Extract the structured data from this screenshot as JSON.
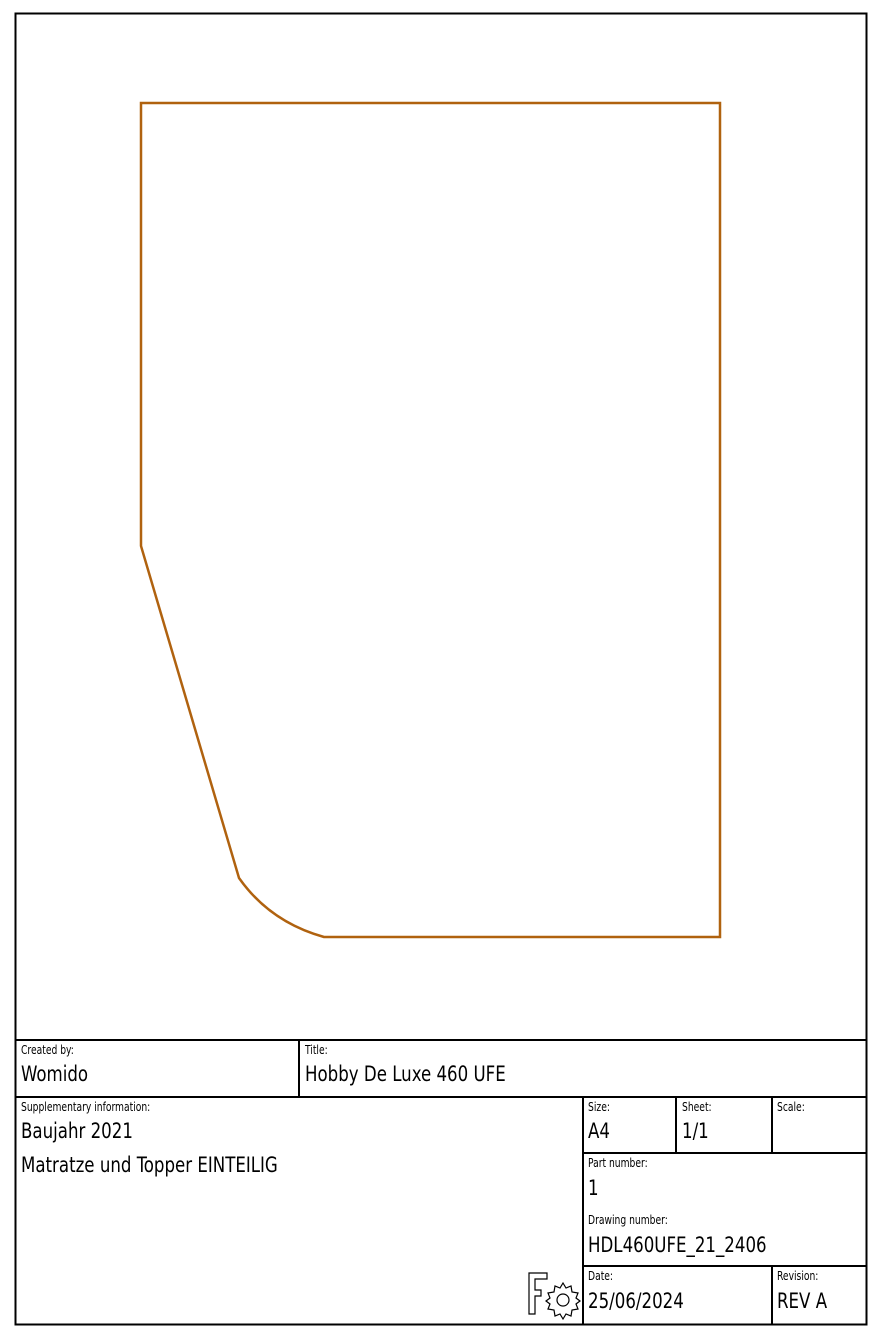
{
  "drawing": {
    "outline_color": "#b0620f",
    "frame_color": "#000000"
  },
  "title_block": {
    "created_by": {
      "label": "Created by:",
      "value": "Womido"
    },
    "title": {
      "label": "Title:",
      "value": "Hobby De Luxe 460 UFE"
    },
    "supplementary": {
      "label": "Supplementary information:",
      "lines": [
        "Baujahr 2021",
        "Matratze und Topper EINTEILIG"
      ]
    },
    "size": {
      "label": "Size:",
      "value": "A4"
    },
    "sheet": {
      "label": "Sheet:",
      "value": "1/1"
    },
    "scale": {
      "label": "Scale:",
      "value": ""
    },
    "part_number": {
      "label": "Part number:",
      "value": "1"
    },
    "drawing_number": {
      "label": "Drawing number:",
      "value": "HDL460UFE_21_2406"
    },
    "date": {
      "label": "Date:",
      "value": "25/06/2024"
    },
    "revision": {
      "label": "Revision:",
      "value": "REV A"
    },
    "logo": "freecad-logo"
  }
}
